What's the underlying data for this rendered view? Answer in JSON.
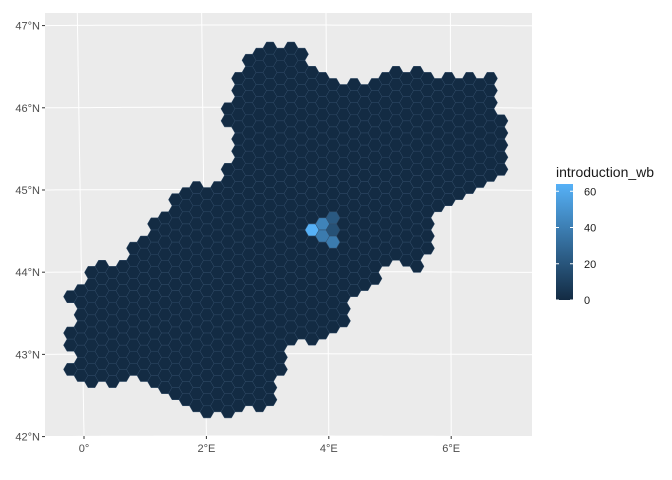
{
  "chart_data": {
    "type": "heatmap",
    "subtype": "hexbin-map",
    "title": "",
    "xlabel": "",
    "ylabel": "",
    "x_ticks": [
      "0°",
      "2°E",
      "4°E",
      "6°E"
    ],
    "y_ticks": [
      "42°N",
      "43°N",
      "44°N",
      "45°N",
      "46°N",
      "47°N"
    ],
    "xlim": [
      -0.6,
      7.2
    ],
    "ylim": [
      41.95,
      47.15
    ],
    "grid": true,
    "panel_background": "#EBEBEB",
    "gridline_color": "#FFFFFF",
    "legend": {
      "title": "introduction_wb",
      "placement": "right",
      "breaks": [
        "0",
        "20",
        "40",
        "60"
      ],
      "break_values": [
        0,
        20,
        40,
        60
      ],
      "range": [
        0,
        64
      ],
      "color_low": "#132B43",
      "color_high": "#56B1F7"
    },
    "hex_fill_default_value": 0,
    "hex_outline_color": "#2F4A66",
    "hotspots": [
      {
        "lon": 3.95,
        "lat": 44.62,
        "value": 30
      },
      {
        "lon": 4.08,
        "lat": 44.62,
        "value": 22
      },
      {
        "lon": 3.82,
        "lat": 44.52,
        "value": 64
      },
      {
        "lon": 3.95,
        "lat": 44.52,
        "value": 42
      },
      {
        "lon": 4.08,
        "lat": 44.52,
        "value": 18
      },
      {
        "lon": 4.02,
        "lat": 44.42,
        "value": 38
      },
      {
        "lon": 4.15,
        "lat": 44.42,
        "value": 14
      }
    ]
  }
}
